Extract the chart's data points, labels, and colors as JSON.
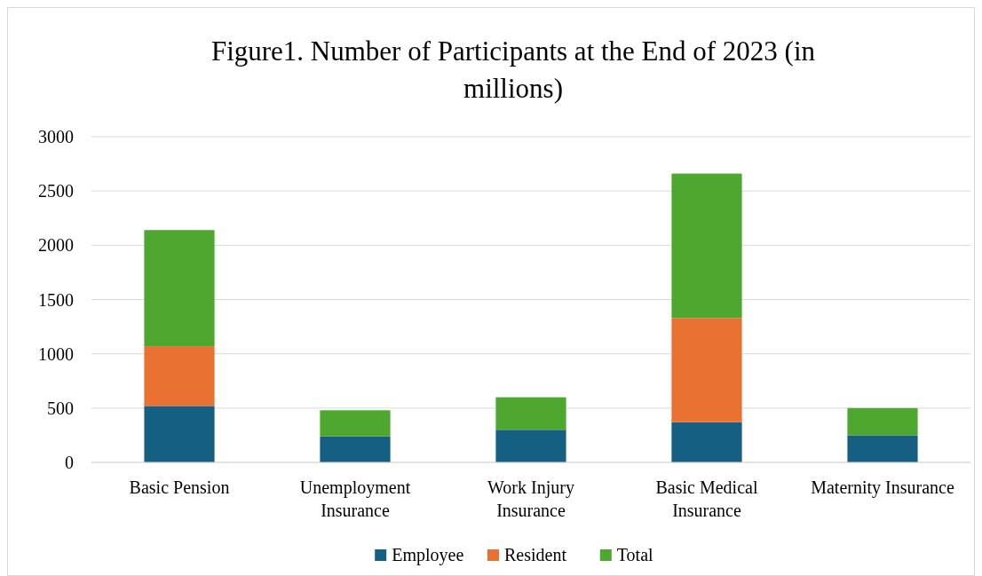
{
  "chart_data": {
    "type": "bar",
    "stacked": true,
    "title": "Figure1. Number of Participants at the End of 2023 (in millions)",
    "categories": [
      "Basic Pension",
      "Unemployment Insurance",
      "Work Injury Insurance",
      "Basic Medical Insurance",
      "Maternity Insurance"
    ],
    "series": [
      {
        "name": "Employee",
        "color": "#156082",
        "values": [
          520,
          240,
          300,
          370,
          250
        ]
      },
      {
        "name": "Resident",
        "color": "#e97132",
        "values": [
          550,
          0,
          0,
          960,
          0
        ]
      },
      {
        "name": "Total",
        "color": "#4ea72e",
        "values": [
          1070,
          240,
          300,
          1330,
          250
        ]
      }
    ],
    "ylim": [
      0,
      3000
    ],
    "yticks": [
      0,
      500,
      1000,
      1500,
      2000,
      2500,
      3000
    ],
    "grid": "y",
    "legend": "bottom"
  }
}
